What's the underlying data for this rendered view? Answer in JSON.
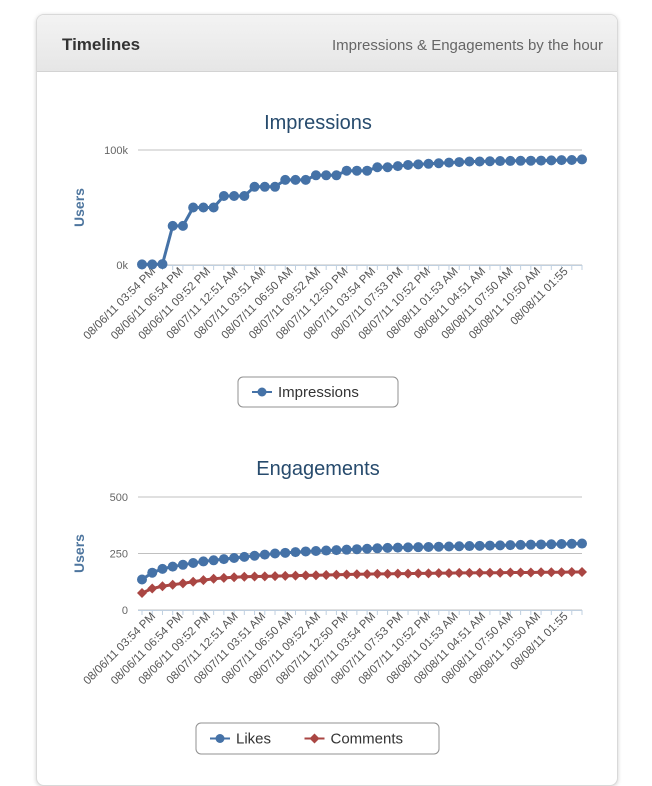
{
  "panel": {
    "title": "Timelines",
    "subtitle": "Impressions & Engagements by the hour"
  },
  "chart_data": [
    {
      "type": "line",
      "title": "Impressions",
      "ylabel": "Users",
      "ylim": [
        0,
        100000
      ],
      "yticks": [
        "0k",
        "100k"
      ],
      "x_tick_labels": [
        "08/06/11 03:54 PM",
        "08/06/11 06:54 PM",
        "08/06/11 09:52 PM",
        "08/07/11 12:51 AM",
        "08/07/11 03:51 AM",
        "08/07/11 06:50 AM",
        "08/07/11 09:52 AM",
        "08/07/11 12:50 PM",
        "08/07/11 03:54 PM",
        "08/07/11 07:53 PM",
        "08/07/11 10:52 PM",
        "08/08/11 01:53 AM",
        "08/08/11 04:51 AM",
        "08/08/11 07:50 AM",
        "08/08/11 10:50 AM",
        "08/08/11 01:55"
      ],
      "legend": "bottom-center",
      "grid": true,
      "series": [
        {
          "name": "Impressions",
          "color": "#4572a7",
          "marker": "circle",
          "values": [
            500,
            500,
            800,
            34000,
            34000,
            50000,
            50000,
            50000,
            60000,
            60000,
            60000,
            68000,
            68000,
            68000,
            74000,
            74000,
            74000,
            78000,
            78000,
            78000,
            82000,
            82000,
            82000,
            85000,
            85000,
            86000,
            87000,
            87500,
            88000,
            88500,
            89000,
            89500,
            90000,
            90000,
            90200,
            90400,
            90500,
            90600,
            90700,
            90800,
            91000,
            91200,
            91300,
            91800
          ]
        }
      ]
    },
    {
      "type": "line",
      "title": "Engagements",
      "ylabel": "Users",
      "ylim": [
        0,
        500
      ],
      "yticks": [
        "0",
        "250",
        "500"
      ],
      "x_tick_labels": [
        "08/06/11 03:54 PM",
        "08/06/11 06:54 PM",
        "08/06/11 09:52 PM",
        "08/07/11 12:51 AM",
        "08/07/11 03:51 AM",
        "08/07/11 06:50 AM",
        "08/07/11 09:52 AM",
        "08/07/11 12:50 PM",
        "08/07/11 03:54 PM",
        "08/07/11 07:53 PM",
        "08/07/11 10:52 PM",
        "08/08/11 01:53 AM",
        "08/08/11 04:51 AM",
        "08/08/11 07:50 AM",
        "08/08/11 10:50 AM",
        "08/08/11 01:55"
      ],
      "legend": "bottom-center",
      "grid": true,
      "series": [
        {
          "name": "Likes",
          "color": "#4572a7",
          "marker": "circle",
          "values": [
            135,
            165,
            182,
            192,
            200,
            208,
            215,
            220,
            225,
            230,
            235,
            240,
            245,
            250,
            253,
            256,
            259,
            261,
            263,
            265,
            267,
            269,
            271,
            273,
            275,
            276,
            277,
            278,
            279,
            280,
            281,
            282,
            283,
            284,
            285,
            286,
            287,
            288,
            289,
            290,
            291,
            292,
            293,
            294
          ]
        },
        {
          "name": "Comments",
          "color": "#aa4643",
          "marker": "diamond",
          "values": [
            75,
            95,
            105,
            112,
            118,
            125,
            132,
            138,
            142,
            145,
            147,
            148,
            149,
            150,
            151,
            152,
            153,
            154,
            155,
            156,
            157,
            158,
            159,
            160,
            160,
            161,
            161,
            162,
            162,
            163,
            163,
            164,
            164,
            165,
            165,
            165,
            166,
            166,
            166,
            167,
            167,
            167,
            168,
            168
          ]
        }
      ]
    }
  ]
}
